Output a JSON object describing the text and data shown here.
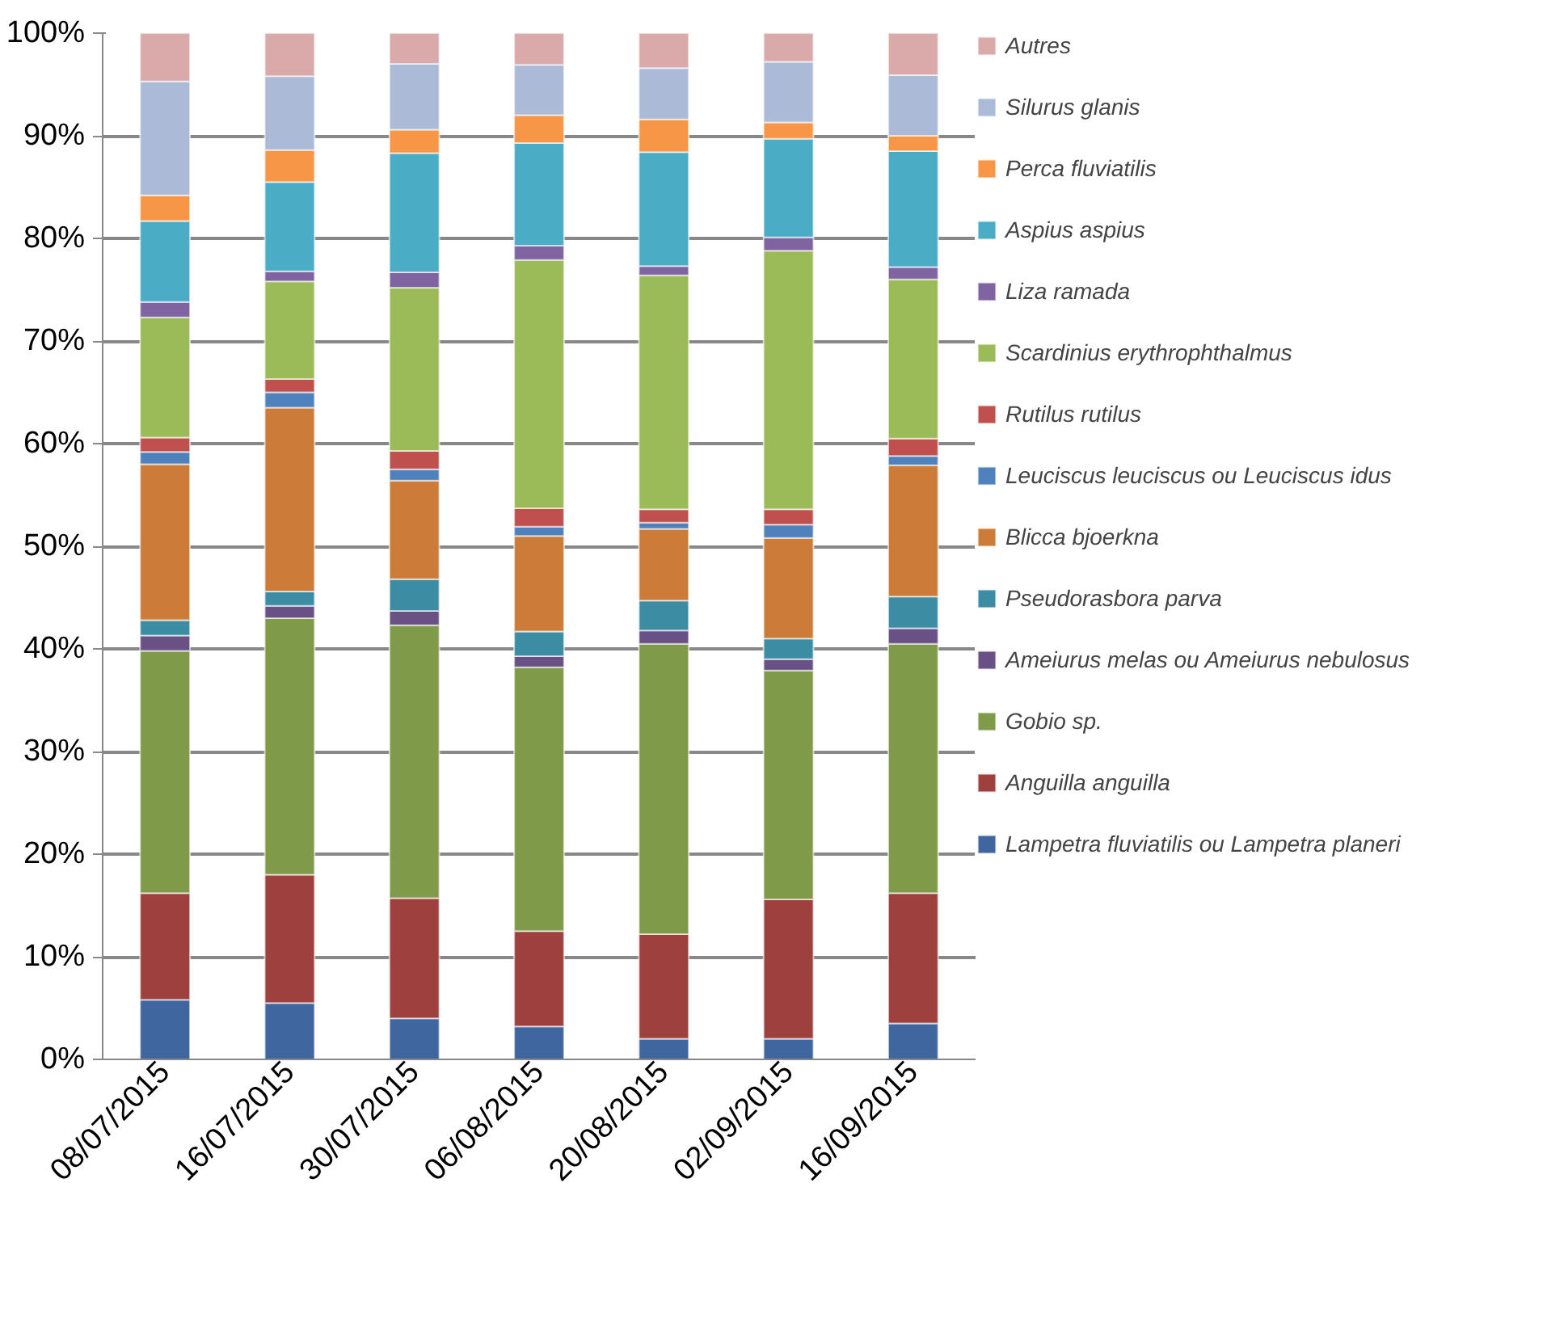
{
  "chart_data": {
    "type": "bar",
    "stacked": true,
    "categories": [
      "08/07/2015",
      "16/07/2015",
      "30/07/2015",
      "06/08/2015",
      "20/08/2015",
      "02/09/2015",
      "16/09/2015"
    ],
    "ylim": [
      0,
      100
    ],
    "yticks": [
      {
        "value": 0,
        "label": "0%"
      },
      {
        "value": 10,
        "label": "10%"
      },
      {
        "value": 20,
        "label": "20%"
      },
      {
        "value": 30,
        "label": "30%"
      },
      {
        "value": 40,
        "label": "40%"
      },
      {
        "value": 50,
        "label": "50%"
      },
      {
        "value": 60,
        "label": "60%"
      },
      {
        "value": 70,
        "label": "70%"
      },
      {
        "value": 80,
        "label": "80%"
      },
      {
        "value": 90,
        "label": "90%"
      },
      {
        "value": 100,
        "label": "100%"
      }
    ],
    "grid": "y",
    "legend": "right",
    "series": [
      {
        "name": "Lampetra fluviatilis ou Lampetra planeri",
        "color": "#4066a0",
        "values": [
          5.8,
          5.5,
          4.0,
          3.2,
          2.0,
          2.0,
          3.5
        ]
      },
      {
        "name": "Anguilla anguilla",
        "color": "#9e413e",
        "values": [
          10.4,
          12.5,
          11.7,
          9.3,
          10.2,
          13.6,
          12.7
        ]
      },
      {
        "name": "Gobio sp.",
        "color": "#7f9a48",
        "values": [
          23.6,
          25.0,
          26.6,
          25.7,
          28.3,
          22.3,
          24.3
        ]
      },
      {
        "name": "Ameiurus melas ou Ameiurus nebulosus",
        "color": "#695185",
        "values": [
          1.5,
          1.2,
          1.4,
          1.1,
          1.3,
          1.1,
          1.5
        ]
      },
      {
        "name": "Pseudorasbora parva",
        "color": "#3c8da3",
        "values": [
          1.5,
          1.4,
          3.1,
          2.4,
          2.9,
          2.0,
          3.1
        ]
      },
      {
        "name": "Blicca bjoerkna",
        "color": "#cc7b38",
        "values": [
          15.2,
          17.9,
          9.6,
          9.3,
          7.0,
          9.8,
          12.8
        ]
      },
      {
        "name": "Leuciscus leuciscus ou Leuciscus idus",
        "color": "#4f81bd",
        "values": [
          1.2,
          1.5,
          1.1,
          0.9,
          0.6,
          1.3,
          0.9
        ]
      },
      {
        "name": "Rutilus rutilus",
        "color": "#c0504d",
        "values": [
          1.4,
          1.3,
          1.8,
          1.8,
          1.3,
          1.5,
          1.7
        ]
      },
      {
        "name": "Scardinius erythrophthalmus",
        "color": "#9bbb59",
        "values": [
          11.7,
          9.5,
          15.9,
          24.2,
          22.8,
          25.2,
          15.5
        ]
      },
      {
        "name": "Liza ramada",
        "color": "#8064a2",
        "values": [
          1.5,
          1.0,
          1.5,
          1.4,
          0.9,
          1.3,
          1.2
        ]
      },
      {
        "name": "Aspius aspius",
        "color": "#4bacc6",
        "values": [
          7.9,
          8.7,
          11.6,
          10.0,
          11.1,
          9.6,
          11.3
        ]
      },
      {
        "name": "Perca fluviatilis",
        "color": "#f79646",
        "values": [
          2.5,
          3.1,
          2.3,
          2.7,
          3.2,
          1.6,
          1.5
        ]
      },
      {
        "name": "Silurus glanis",
        "color": "#aabad7",
        "values": [
          11.1,
          7.2,
          6.4,
          4.9,
          5.0,
          5.9,
          5.9
        ]
      },
      {
        "name": "Autres",
        "color": "#d9aaa9",
        "values": [
          4.7,
          4.2,
          3.0,
          3.1,
          3.4,
          2.8,
          4.1
        ]
      }
    ]
  }
}
